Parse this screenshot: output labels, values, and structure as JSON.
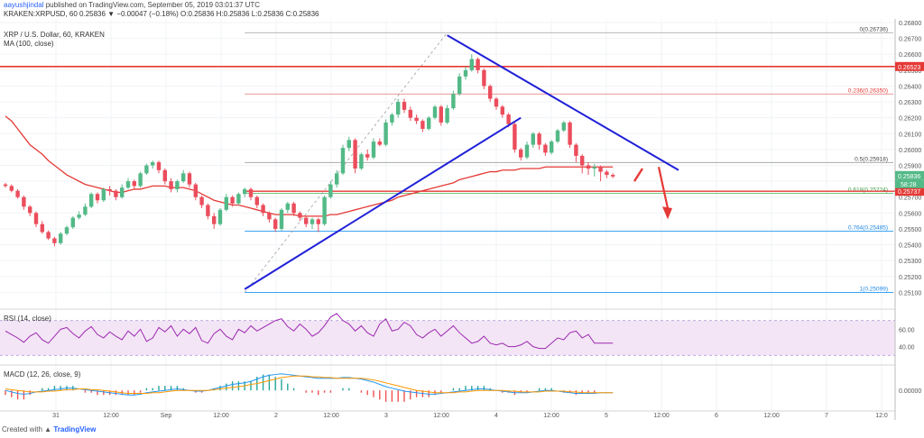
{
  "header": {
    "user": "aayushjindal",
    "published": "published on TradingView.com, September 05, 2019 03:01:37 UTC",
    "symbol_line": "XRP / U.S. Dollar, 60, KRAKEN",
    "ticker_line": "KRAKEN:XRPUSD, 60 0.25836 ▼ −0.00047 (−0.18%) O:0.25836 H:0.25836 L:0.25836 C:0.25836",
    "ma_label": "MA (100, close)"
  },
  "footer": {
    "created_with": "Created with",
    "brand": "TradingView"
  },
  "colors": {
    "candle_up": "#53b987",
    "candle_down": "#eb4d5c",
    "ma": "#e53935",
    "trend": "#2020d8",
    "resistance": "#e53935",
    "arrow": "#e53935",
    "rsi": "#9c27b0",
    "rsi_band": "#e1bee7",
    "macd": "#2196f3",
    "signal": "#ff9800"
  },
  "chart_data": [
    {
      "type": "candlestick",
      "title": "XRP / U.S. Dollar, 60, KRAKEN",
      "ylim": [
        0.25,
        0.268
      ],
      "y_ticks": [
        "0.26800",
        "0.26700",
        "0.26600",
        "0.26500",
        "0.26400",
        "0.26300",
        "0.26200",
        "0.26100",
        "0.26000",
        "0.25900",
        "0.25800",
        "0.25700",
        "0.25600",
        "0.25500",
        "0.25400",
        "0.25300",
        "0.25200",
        "0.25100"
      ],
      "x_ticks": [
        "31",
        "12:00",
        "Sep",
        "12:00",
        "2",
        "12:00",
        "3",
        "12:00",
        "4",
        "12:00",
        "5",
        "12:00",
        "6",
        "12:00",
        "7",
        "12:0"
      ],
      "price_tags": [
        {
          "value": 0.26523,
          "label": "0.26523"
        },
        {
          "value": 0.25836,
          "label": "0.25836"
        },
        {
          "value": 0.25737,
          "label": "0.25737"
        }
      ],
      "countdown": "58:28",
      "fib_levels": [
        {
          "label": "0(0.26736)",
          "value": 0.26736
        },
        {
          "label": "0.236(0.26350)",
          "value": 0.2635
        },
        {
          "label": "0.5(0.25918)",
          "value": 0.25918
        },
        {
          "label": "0.618(0.25724)",
          "value": 0.25724
        },
        {
          "label": "0.764(0.25485)",
          "value": 0.25485
        },
        {
          "label": "1(0.25099)",
          "value": 0.25099
        }
      ],
      "candles": [
        [
          0.2578,
          0.2577,
          0.2579,
          0.2576
        ],
        [
          0.2577,
          0.2574,
          0.2578,
          0.2573
        ],
        [
          0.2574,
          0.257,
          0.2575,
          0.2569
        ],
        [
          0.257,
          0.2564,
          0.2571,
          0.2562
        ],
        [
          0.2564,
          0.256,
          0.2565,
          0.2558
        ],
        [
          0.256,
          0.2553,
          0.2561,
          0.2551
        ],
        [
          0.2553,
          0.2548,
          0.2555,
          0.2547
        ],
        [
          0.2548,
          0.2544,
          0.2549,
          0.2543
        ],
        [
          0.2544,
          0.2541,
          0.2545,
          0.2539
        ],
        [
          0.2541,
          0.2547,
          0.2548,
          0.254
        ],
        [
          0.2547,
          0.2551,
          0.2552,
          0.2546
        ],
        [
          0.2551,
          0.2557,
          0.2558,
          0.255
        ],
        [
          0.2557,
          0.2559,
          0.2561,
          0.2556
        ],
        [
          0.2559,
          0.2564,
          0.2566,
          0.2558
        ],
        [
          0.2564,
          0.2572,
          0.2573,
          0.2563
        ],
        [
          0.2572,
          0.2568,
          0.2573,
          0.2566
        ],
        [
          0.2568,
          0.2575,
          0.2576,
          0.2567
        ],
        [
          0.2575,
          0.2574,
          0.2577,
          0.2571
        ],
        [
          0.2574,
          0.257,
          0.2575,
          0.2568
        ],
        [
          0.257,
          0.2576,
          0.2578,
          0.2569
        ],
        [
          0.2576,
          0.258,
          0.2582,
          0.2575
        ],
        [
          0.258,
          0.2577,
          0.2581,
          0.2575
        ],
        [
          0.2577,
          0.2585,
          0.2586,
          0.2576
        ],
        [
          0.2585,
          0.259,
          0.2591,
          0.2584
        ],
        [
          0.259,
          0.2592,
          0.2593,
          0.2588
        ],
        [
          0.2592,
          0.2587,
          0.2593,
          0.2585
        ],
        [
          0.2587,
          0.258,
          0.2588,
          0.2578
        ],
        [
          0.258,
          0.2575,
          0.2582,
          0.2573
        ],
        [
          0.2575,
          0.258,
          0.2581,
          0.2573
        ],
        [
          0.258,
          0.2585,
          0.2587,
          0.2579
        ],
        [
          0.2585,
          0.2578,
          0.2586,
          0.2576
        ],
        [
          0.2578,
          0.257,
          0.2579,
          0.2568
        ],
        [
          0.257,
          0.2565,
          0.2571,
          0.2563
        ],
        [
          0.2565,
          0.2558,
          0.2566,
          0.2556
        ],
        [
          0.2558,
          0.2553,
          0.256,
          0.255
        ],
        [
          0.2553,
          0.2562,
          0.2563,
          0.2552
        ],
        [
          0.2562,
          0.257,
          0.2572,
          0.2561
        ],
        [
          0.257,
          0.2566,
          0.2571,
          0.2564
        ],
        [
          0.2566,
          0.2572,
          0.2573,
          0.2565
        ],
        [
          0.2572,
          0.2575,
          0.2576,
          0.257
        ],
        [
          0.2575,
          0.257,
          0.2576,
          0.2568
        ],
        [
          0.257,
          0.2565,
          0.2571,
          0.2563
        ],
        [
          0.2565,
          0.256,
          0.2566,
          0.2558
        ],
        [
          0.256,
          0.2556,
          0.2561,
          0.2554
        ],
        [
          0.2556,
          0.255,
          0.2557,
          0.2548
        ],
        [
          0.255,
          0.2562,
          0.2563,
          0.2549
        ],
        [
          0.2562,
          0.2566,
          0.2567,
          0.256
        ],
        [
          0.2566,
          0.256,
          0.2567,
          0.2558
        ],
        [
          0.256,
          0.2557,
          0.2561,
          0.2555
        ],
        [
          0.2557,
          0.2553,
          0.2558,
          0.2551
        ],
        [
          0.2553,
          0.2556,
          0.2557,
          0.255
        ],
        [
          0.2556,
          0.2553,
          0.2557,
          0.2548
        ],
        [
          0.2553,
          0.257,
          0.2571,
          0.2552
        ],
        [
          0.257,
          0.2578,
          0.258,
          0.2569
        ],
        [
          0.2578,
          0.2585,
          0.2587,
          0.2576
        ],
        [
          0.2585,
          0.2601,
          0.2603,
          0.2584
        ],
        [
          0.2601,
          0.2606,
          0.2608,
          0.2599
        ],
        [
          0.2606,
          0.2588,
          0.2607,
          0.2585
        ],
        [
          0.2588,
          0.2597,
          0.2598,
          0.2587
        ],
        [
          0.2597,
          0.2595,
          0.26,
          0.2593
        ],
        [
          0.2595,
          0.2605,
          0.2607,
          0.2594
        ],
        [
          0.2605,
          0.2603,
          0.2607,
          0.2602
        ],
        [
          0.2603,
          0.2617,
          0.2619,
          0.2602
        ],
        [
          0.2617,
          0.2622,
          0.2623,
          0.2615
        ],
        [
          0.2622,
          0.263,
          0.2632,
          0.262
        ],
        [
          0.263,
          0.2625,
          0.2632,
          0.2623
        ],
        [
          0.2625,
          0.262,
          0.2627,
          0.2618
        ],
        [
          0.262,
          0.2618,
          0.2622,
          0.2616
        ],
        [
          0.2618,
          0.2613,
          0.2619,
          0.2611
        ],
        [
          0.2613,
          0.262,
          0.2621,
          0.2612
        ],
        [
          0.262,
          0.2627,
          0.2628,
          0.2619
        ],
        [
          0.2627,
          0.2617,
          0.2628,
          0.2615
        ],
        [
          0.2617,
          0.2626,
          0.2628,
          0.2616
        ],
        [
          0.2626,
          0.2635,
          0.2637,
          0.2625
        ],
        [
          0.2635,
          0.2646,
          0.2648,
          0.2634
        ],
        [
          0.2646,
          0.265,
          0.2652,
          0.2644
        ],
        [
          0.265,
          0.2657,
          0.266,
          0.2649
        ],
        [
          0.2657,
          0.265,
          0.2658,
          0.2648
        ],
        [
          0.265,
          0.264,
          0.2651,
          0.2638
        ],
        [
          0.264,
          0.2632,
          0.2641,
          0.263
        ],
        [
          0.2632,
          0.2627,
          0.2633,
          0.2625
        ],
        [
          0.2627,
          0.2622,
          0.2628,
          0.262
        ],
        [
          0.2622,
          0.2616,
          0.2623,
          0.2614
        ],
        [
          0.2616,
          0.26,
          0.2617,
          0.2598
        ],
        [
          0.26,
          0.2595,
          0.2601,
          0.2593
        ],
        [
          0.2595,
          0.2603,
          0.2605,
          0.2594
        ],
        [
          0.2603,
          0.261,
          0.2611,
          0.2601
        ],
        [
          0.261,
          0.2603,
          0.2611,
          0.26
        ],
        [
          0.2603,
          0.2598,
          0.2604,
          0.2596
        ],
        [
          0.2598,
          0.2605,
          0.2606,
          0.2597
        ],
        [
          0.2605,
          0.2612,
          0.2613,
          0.2604
        ],
        [
          0.2612,
          0.2617,
          0.2618,
          0.2611
        ],
        [
          0.2617,
          0.2603,
          0.2618,
          0.2601
        ],
        [
          0.2603,
          0.2596,
          0.2604,
          0.2592
        ],
        [
          0.2596,
          0.259,
          0.2597,
          0.2585
        ],
        [
          0.259,
          0.2588,
          0.2592,
          0.2584
        ],
        [
          0.2588,
          0.2589,
          0.2591,
          0.2583
        ],
        [
          0.2589,
          0.2586,
          0.259,
          0.258
        ],
        [
          0.2586,
          0.2584,
          0.2587,
          0.2582
        ],
        [
          0.2584,
          0.2583,
          0.2585,
          0.2582
        ]
      ],
      "ma100": [
        0.2621,
        0.2618,
        0.2613,
        0.2608,
        0.2603,
        0.26,
        0.2597,
        0.2593,
        0.259,
        0.2587,
        0.2584,
        0.2582,
        0.258,
        0.2578,
        0.2577,
        0.2576,
        0.2575,
        0.2574,
        0.2573,
        0.2573,
        0.2574,
        0.2575,
        0.2575,
        0.2576,
        0.2577,
        0.2577,
        0.2577,
        0.2576,
        0.2576,
        0.2576,
        0.2575,
        0.2574,
        0.2572,
        0.257,
        0.2568,
        0.2567,
        0.2566,
        0.2565,
        0.2565,
        0.2564,
        0.2563,
        0.2562,
        0.2561,
        0.256,
        0.2559,
        0.2559,
        0.2559,
        0.2559,
        0.2558,
        0.2558,
        0.2558,
        0.2558,
        0.2558,
        0.2559,
        0.2559,
        0.256,
        0.2561,
        0.2562,
        0.2563,
        0.2564,
        0.2565,
        0.2566,
        0.2567,
        0.2568,
        0.257,
        0.2571,
        0.2572,
        0.2573,
        0.2574,
        0.2575,
        0.2576,
        0.2577,
        0.2578,
        0.2579,
        0.2581,
        0.2582,
        0.2583,
        0.2584,
        0.2585,
        0.2586,
        0.2586,
        0.2587,
        0.2587,
        0.2587,
        0.2588,
        0.2588,
        0.2588,
        0.2588,
        0.2589,
        0.2589,
        0.2589,
        0.2589,
        0.2589,
        0.2589,
        0.2589,
        0.2589,
        0.2589,
        0.2589,
        0.2589,
        0.2589
      ],
      "annotations": [
        "rising support trend line",
        "descending resistance trend line",
        "horizontal resistance at 0.26523",
        "projected downside arrow"
      ]
    },
    {
      "type": "line",
      "title": "RSI (14, close)",
      "ylim": [
        20,
        80
      ],
      "y_ticks": [
        "60.00",
        "40.00"
      ],
      "band": [
        30,
        70
      ],
      "series": [
        {
          "name": "RSI",
          "values": [
            58,
            54,
            50,
            45,
            52,
            56,
            48,
            44,
            52,
            60,
            62,
            55,
            50,
            58,
            63,
            54,
            50,
            57,
            52,
            48,
            58,
            52,
            60,
            46,
            50,
            62,
            57,
            64,
            52,
            60,
            55,
            62,
            47,
            44,
            55,
            60,
            52,
            48,
            60,
            56,
            64,
            58,
            62,
            66,
            70,
            72,
            63,
            58,
            66,
            60,
            52,
            56,
            64,
            74,
            78,
            70,
            66,
            58,
            64,
            56,
            52,
            66,
            72,
            58,
            60,
            68,
            64,
            54,
            50,
            56,
            60,
            52,
            58,
            64,
            56,
            50,
            44,
            46,
            52,
            44,
            42,
            44,
            40,
            40,
            42,
            46,
            40,
            38,
            38,
            44,
            50,
            48,
            56,
            58,
            50,
            54,
            44,
            44,
            44,
            44
          ]
        }
      ]
    },
    {
      "type": "line",
      "title": "MACD (12, 26, close, 9)",
      "ylim": [
        -0.002,
        0.003
      ],
      "y_ticks": [
        "0.00000"
      ],
      "series": [
        {
          "name": "MACD",
          "values": [
            0.0,
            -0.0002,
            -0.0004,
            -0.0005,
            -0.0004,
            -0.0002,
            -0.0001,
            0.0,
            0.0001,
            0.0002,
            0.0003,
            0.0003,
            0.0002,
            0.0001,
            0.0,
            -0.0001,
            -0.0002,
            -0.0003,
            -0.0004,
            -0.0005,
            -0.0006,
            -0.0006,
            -0.0005,
            -0.0003,
            -0.0002,
            -0.0001,
            0.0,
            0.0001,
            0.0002,
            0.0001,
            0.0,
            -0.0001,
            -0.0001,
            0.0,
            0.0002,
            0.0004,
            0.0006,
            0.0008,
            0.0009,
            0.001,
            0.0012,
            0.0015,
            0.0018,
            0.002,
            0.0021,
            0.0022,
            0.0021,
            0.002,
            0.0019,
            0.0018,
            0.0017,
            0.0016,
            0.0016,
            0.0016,
            0.0016,
            0.0017,
            0.0017,
            0.0016,
            0.0015,
            0.0013,
            0.0011,
            0.0008,
            0.0005,
            0.0003,
            0.0001,
            -0.0001,
            -0.0002,
            -0.0003,
            -0.0004,
            -0.0005,
            -0.0005,
            -0.0004,
            -0.0003,
            -0.0002,
            -0.0001,
            0.0,
            0.0001,
            0.0002,
            0.0002,
            0.0001,
            0.0,
            -0.0001,
            -0.0002,
            -0.0003,
            -0.0003,
            -0.0003,
            -0.0002,
            -0.0001,
            0.0,
            0.0,
            -0.0001,
            -0.0002,
            -0.0003,
            -0.0004,
            -0.0004,
            -0.0004,
            -0.0004,
            -0.0003,
            -0.0003,
            -0.0003
          ]
        },
        {
          "name": "Signal",
          "values": [
            0.0002,
            0.0001,
            0.0,
            -0.0001,
            -0.0002,
            -0.0002,
            -0.0002,
            -0.0001,
            -0.0001,
            0.0,
            0.0001,
            0.0001,
            0.0002,
            0.0002,
            0.0001,
            0.0001,
            0.0,
            -0.0001,
            -0.0002,
            -0.0003,
            -0.0004,
            -0.0004,
            -0.0004,
            -0.0004,
            -0.0003,
            -0.0003,
            -0.0002,
            -0.0001,
            0.0,
            0.0,
            0.0,
            0.0,
            0.0,
            0.0,
            0.0001,
            0.0002,
            0.0003,
            0.0004,
            0.0005,
            0.0006,
            0.0008,
            0.0009,
            0.0011,
            0.0013,
            0.0015,
            0.0017,
            0.0018,
            0.0019,
            0.0019,
            0.0019,
            0.0018,
            0.0018,
            0.0017,
            0.0017,
            0.0016,
            0.0016,
            0.0016,
            0.0016,
            0.0016,
            0.0015,
            0.0014,
            0.0012,
            0.001,
            0.0008,
            0.0006,
            0.0004,
            0.0002,
            0.0,
            -0.0001,
            -0.0002,
            -0.0003,
            -0.0003,
            -0.0003,
            -0.0003,
            -0.0002,
            -0.0002,
            -0.0001,
            0.0,
            0.0,
            0.0,
            0.0,
            0.0,
            -0.0001,
            -0.0001,
            -0.0002,
            -0.0002,
            -0.0002,
            -0.0002,
            -0.0001,
            -0.0001,
            -0.0001,
            -0.0001,
            -0.0002,
            -0.0002,
            -0.0003,
            -0.0003,
            -0.0003,
            -0.0003,
            -0.0003,
            -0.0003
          ]
        }
      ]
    }
  ]
}
